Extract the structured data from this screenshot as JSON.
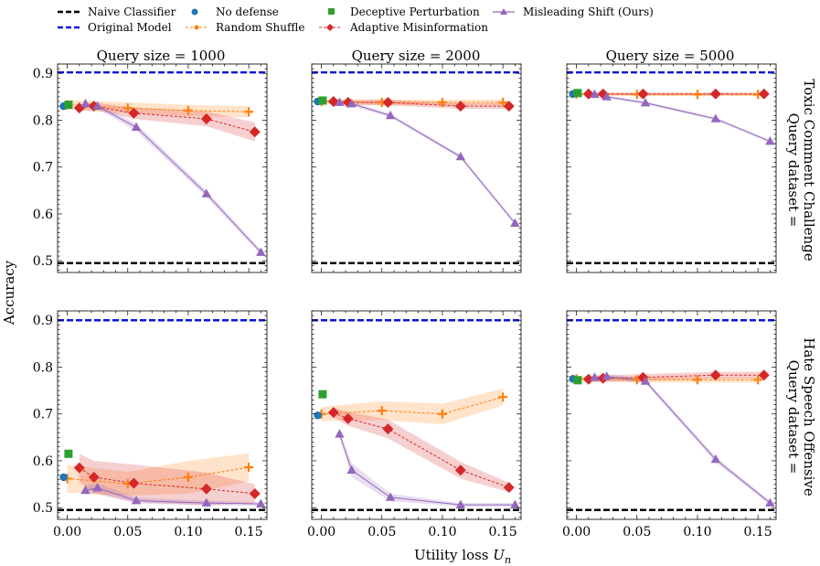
{
  "colors": {
    "naive": "#000000",
    "original": "#0a14d8",
    "no_defense": "#1f77b4",
    "random_shuffle": "#ff7f0e",
    "deceptive": "#2ca02c",
    "adaptive": "#d62728",
    "misleading": "#9467bd"
  },
  "legend": {
    "naive": "Naive Classifier",
    "original": "Original Model",
    "no_defense": "No defense",
    "random_shuffle": "Random Shuffle",
    "deceptive": "Deceptive Perturbation",
    "adaptive": "Adaptive Misinformation",
    "misleading": "Misleading Shift (Ours)"
  },
  "axes": {
    "xlabel_text": "Utility loss ",
    "xlabel_var": "U",
    "xlabel_sub": "n",
    "ylabel": "Accuracy",
    "xticks": [
      "0.00",
      "0.05",
      "0.10",
      "0.15"
    ],
    "yticks": [
      "0.5",
      "0.6",
      "0.7",
      "0.8",
      "0.9"
    ]
  },
  "columns": [
    "Query size = 1000",
    "Query size = 2000",
    "Query size = 5000"
  ],
  "rows": [
    {
      "line1": "Query dataset =",
      "line2": "Toxic Comment Challenge"
    },
    {
      "line1": "Query dataset =",
      "line2": "Hate Speech Offensive"
    }
  ],
  "chart_data": {
    "type": "line",
    "grid": false,
    "xlabel": "Utility loss U_n",
    "ylabel": "Accuracy",
    "xlim": [
      -0.008,
      0.165
    ],
    "ylim": [
      0.475,
      0.92
    ],
    "xticks": [
      0.0,
      0.05,
      0.1,
      0.15
    ],
    "yticks": [
      0.5,
      0.6,
      0.7,
      0.8,
      0.9
    ],
    "panels": [
      {
        "row": "Toxic Comment Challenge",
        "query_size": 1000,
        "naive": 0.495,
        "original": 0.902,
        "no_defense": {
          "x": -0.003,
          "y": 0.83
        },
        "deceptive": {
          "x": 0.001,
          "y": 0.833
        },
        "random_shuffle": {
          "x": [
            0.0,
            0.05,
            0.1,
            0.15
          ],
          "y": [
            0.833,
            0.826,
            0.821,
            0.818
          ],
          "band": [
            0.01,
            0.012,
            0.012,
            0.012
          ]
        },
        "adaptive": {
          "x": [
            0.01,
            0.022,
            0.055,
            0.115,
            0.155
          ],
          "y": [
            0.826,
            0.83,
            0.815,
            0.803,
            0.775
          ],
          "band": [
            0.006,
            0.008,
            0.012,
            0.016,
            0.02
          ]
        },
        "misleading": {
          "x": [
            0.015,
            0.025,
            0.057,
            0.115,
            0.16
          ],
          "y": [
            0.835,
            0.83,
            0.785,
            0.643,
            0.518
          ],
          "band": [
            0.004,
            0.005,
            0.008,
            0.007,
            0.005
          ]
        }
      },
      {
        "row": "Toxic Comment Challenge",
        "query_size": 2000,
        "naive": 0.495,
        "original": 0.902,
        "no_defense": {
          "x": -0.003,
          "y": 0.84
        },
        "deceptive": {
          "x": 0.001,
          "y": 0.842
        },
        "random_shuffle": {
          "x": [
            0.0,
            0.05,
            0.1,
            0.15
          ],
          "y": [
            0.84,
            0.838,
            0.838,
            0.838
          ],
          "band": [
            0.006,
            0.006,
            0.006,
            0.006
          ]
        },
        "adaptive": {
          "x": [
            0.01,
            0.022,
            0.055,
            0.115,
            0.155
          ],
          "y": [
            0.84,
            0.838,
            0.838,
            0.83,
            0.83
          ],
          "band": [
            0.004,
            0.005,
            0.006,
            0.006,
            0.006
          ]
        },
        "misleading": {
          "x": [
            0.015,
            0.025,
            0.057,
            0.115,
            0.16
          ],
          "y": [
            0.838,
            0.835,
            0.81,
            0.722,
            0.58
          ],
          "band": [
            0.003,
            0.004,
            0.004,
            0.004,
            0.004
          ]
        }
      },
      {
        "row": "Toxic Comment Challenge",
        "query_size": 5000,
        "naive": 0.495,
        "original": 0.902,
        "no_defense": {
          "x": -0.003,
          "y": 0.856
        },
        "deceptive": {
          "x": 0.001,
          "y": 0.858
        },
        "random_shuffle": {
          "x": [
            0.0,
            0.05,
            0.1,
            0.15
          ],
          "y": [
            0.856,
            0.855,
            0.855,
            0.855
          ],
          "band": [
            0.003,
            0.003,
            0.003,
            0.003
          ]
        },
        "adaptive": {
          "x": [
            0.01,
            0.022,
            0.055,
            0.115,
            0.155
          ],
          "y": [
            0.856,
            0.856,
            0.856,
            0.856,
            0.856
          ],
          "band": [
            0.003,
            0.003,
            0.003,
            0.003,
            0.003
          ]
        },
        "misleading": {
          "x": [
            0.015,
            0.025,
            0.057,
            0.115,
            0.16
          ],
          "y": [
            0.855,
            0.85,
            0.837,
            0.803,
            0.755
          ],
          "band": [
            0.003,
            0.003,
            0.003,
            0.003,
            0.003
          ]
        }
      },
      {
        "row": "Hate Speech Offensive",
        "query_size": 1000,
        "naive": 0.495,
        "original": 0.9,
        "no_defense": {
          "x": -0.003,
          "y": 0.565
        },
        "deceptive": {
          "x": 0.001,
          "y": 0.615
        },
        "random_shuffle": {
          "x": [
            0.0,
            0.05,
            0.1,
            0.15
          ],
          "y": [
            0.562,
            0.551,
            0.565,
            0.586
          ],
          "band": [
            0.03,
            0.025,
            0.035,
            0.03
          ]
        },
        "adaptive": {
          "x": [
            0.01,
            0.022,
            0.055,
            0.115,
            0.155
          ],
          "y": [
            0.585,
            0.565,
            0.552,
            0.54,
            0.53
          ],
          "band": [
            0.03,
            0.035,
            0.04,
            0.035,
            0.02
          ]
        },
        "misleading": {
          "x": [
            0.015,
            0.025,
            0.057,
            0.115,
            0.16
          ],
          "y": [
            0.537,
            0.542,
            0.515,
            0.51,
            0.508
          ],
          "band": [
            0.01,
            0.01,
            0.006,
            0.005,
            0.004
          ]
        }
      },
      {
        "row": "Hate Speech Offensive",
        "query_size": 2000,
        "naive": 0.495,
        "original": 0.9,
        "no_defense": {
          "x": -0.003,
          "y": 0.697
        },
        "deceptive": {
          "x": 0.001,
          "y": 0.742
        },
        "random_shuffle": {
          "x": [
            0.0,
            0.05,
            0.1,
            0.15
          ],
          "y": [
            0.7,
            0.707,
            0.7,
            0.736
          ],
          "band": [
            0.015,
            0.02,
            0.022,
            0.018
          ]
        },
        "adaptive": {
          "x": [
            0.01,
            0.022,
            0.055,
            0.115,
            0.155
          ],
          "y": [
            0.703,
            0.69,
            0.668,
            0.58,
            0.543
          ],
          "band": [
            0.01,
            0.015,
            0.02,
            0.018,
            0.01
          ]
        },
        "misleading": {
          "x": [
            0.015,
            0.025,
            0.057,
            0.115,
            0.16
          ],
          "y": [
            0.657,
            0.58,
            0.522,
            0.506,
            0.506
          ],
          "band": [
            0.008,
            0.015,
            0.008,
            0.004,
            0.004
          ]
        }
      },
      {
        "row": "Hate Speech Offensive",
        "query_size": 5000,
        "naive": 0.495,
        "original": 0.9,
        "no_defense": {
          "x": -0.003,
          "y": 0.775
        },
        "deceptive": {
          "x": 0.001,
          "y": 0.772
        },
        "random_shuffle": {
          "x": [
            0.0,
            0.05,
            0.1,
            0.15
          ],
          "y": [
            0.775,
            0.773,
            0.773,
            0.773
          ],
          "band": [
            0.006,
            0.006,
            0.006,
            0.006
          ]
        },
        "adaptive": {
          "x": [
            0.01,
            0.022,
            0.055,
            0.115,
            0.155
          ],
          "y": [
            0.774,
            0.776,
            0.778,
            0.783,
            0.783
          ],
          "band": [
            0.006,
            0.007,
            0.007,
            0.007,
            0.007
          ]
        },
        "misleading": {
          "x": [
            0.015,
            0.025,
            0.057,
            0.115,
            0.16
          ],
          "y": [
            0.778,
            0.78,
            0.77,
            0.603,
            0.51
          ],
          "band": [
            0.005,
            0.005,
            0.005,
            0.006,
            0.004
          ]
        }
      }
    ]
  }
}
